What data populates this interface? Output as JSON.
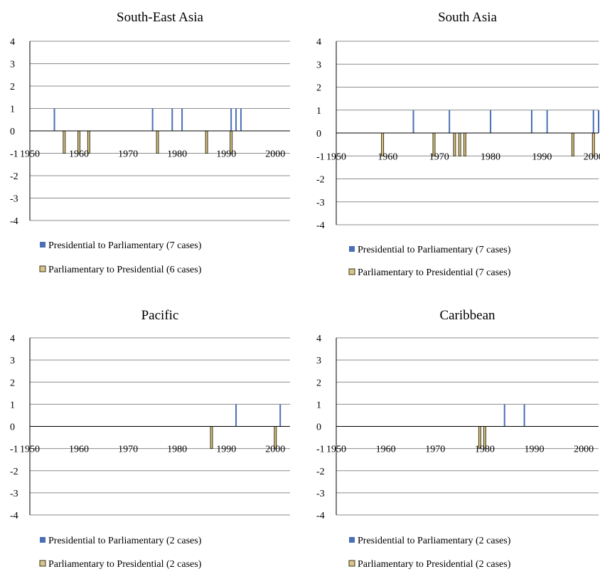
{
  "colors": {
    "presidential_to_parliamentary": "#4a6fb5",
    "parliamentary_to_presidential_fill": "#d9c48e",
    "parliamentary_to_presidential_stroke": "#3b3411",
    "gridline": "#8c8c8c",
    "axis": "#000000"
  },
  "chart_data": [
    {
      "type": "bar",
      "title": "South-East Asia",
      "xlim": [
        1950,
        2003
      ],
      "ylim": [
        -4,
        4
      ],
      "x_ticks": [
        1950,
        1960,
        1970,
        1980,
        1990,
        2000
      ],
      "y_ticks": [
        4,
        3,
        2,
        1,
        0,
        -1,
        -2,
        -3,
        -4
      ],
      "grid": true,
      "legend_position": "bottom",
      "series": [
        {
          "name": "Presidential to Parliamentary (7 cases)",
          "x": [
            1955,
            1975,
            1979,
            1981,
            1991,
            1992,
            1993
          ],
          "values": [
            1,
            1,
            1,
            1,
            1,
            1,
            1
          ]
        },
        {
          "name": "Parliamentary to Presidential (6 cases)",
          "x": [
            1957,
            1960,
            1962,
            1976,
            1986,
            1991
          ],
          "values": [
            -1,
            -1,
            -1,
            -1,
            -1,
            -1
          ]
        }
      ]
    },
    {
      "type": "bar",
      "title": "South Asia",
      "xlim": [
        1950,
        2001
      ],
      "ylim": [
        -4,
        4
      ],
      "x_ticks": [
        1950,
        1960,
        1970,
        1980,
        1990,
        2000
      ],
      "y_ticks": [
        4,
        3,
        2,
        1,
        0,
        -1,
        -2,
        -3,
        -4
      ],
      "grid": true,
      "legend_position": "bottom",
      "series": [
        {
          "name": "Presidential to Parliamentary (7 cases)",
          "x": [
            1965,
            1972,
            1980,
            1988,
            1991,
            2000,
            2001
          ],
          "values": [
            1,
            1,
            1,
            1,
            1,
            1,
            1
          ]
        },
        {
          "name": "Parliamentary to Presidential (7 cases)",
          "x": [
            1959,
            1969,
            1973,
            1974,
            1975,
            1996,
            2000
          ],
          "values": [
            -1,
            -1,
            -1,
            -1,
            -1,
            -1,
            -1
          ]
        }
      ]
    },
    {
      "type": "bar",
      "title": "Pacific",
      "xlim": [
        1950,
        2003
      ],
      "ylim": [
        -4,
        4
      ],
      "x_ticks": [
        1950,
        1960,
        1970,
        1980,
        1990,
        2000
      ],
      "y_ticks": [
        4,
        3,
        2,
        1,
        0,
        -1,
        -2,
        -3,
        -4
      ],
      "grid": true,
      "legend_position": "bottom",
      "series": [
        {
          "name": "Presidential to Parliamentary (2 cases)",
          "x": [
            1992,
            2001
          ],
          "values": [
            1,
            1
          ]
        },
        {
          "name": "Parliamentary to Presidential (2 cases)",
          "x": [
            1987,
            2000
          ],
          "values": [
            -1,
            -1
          ]
        }
      ]
    },
    {
      "type": "bar",
      "title": "Caribbean",
      "xlim": [
        1950,
        2003
      ],
      "ylim": [
        -4,
        4
      ],
      "x_ticks": [
        1950,
        1960,
        1970,
        1980,
        1990,
        2000
      ],
      "y_ticks": [
        4,
        3,
        2,
        1,
        0,
        -1,
        -2,
        -3,
        -4
      ],
      "grid": true,
      "legend_position": "bottom",
      "series": [
        {
          "name": "Presidential to Parliamentary (2 cases)",
          "x": [
            1984,
            1988
          ],
          "values": [
            1,
            1
          ]
        },
        {
          "name": "Parliamentary to Presidential (2 cases)",
          "x": [
            1979,
            1980
          ],
          "values": [
            -1,
            -1
          ]
        }
      ]
    }
  ]
}
